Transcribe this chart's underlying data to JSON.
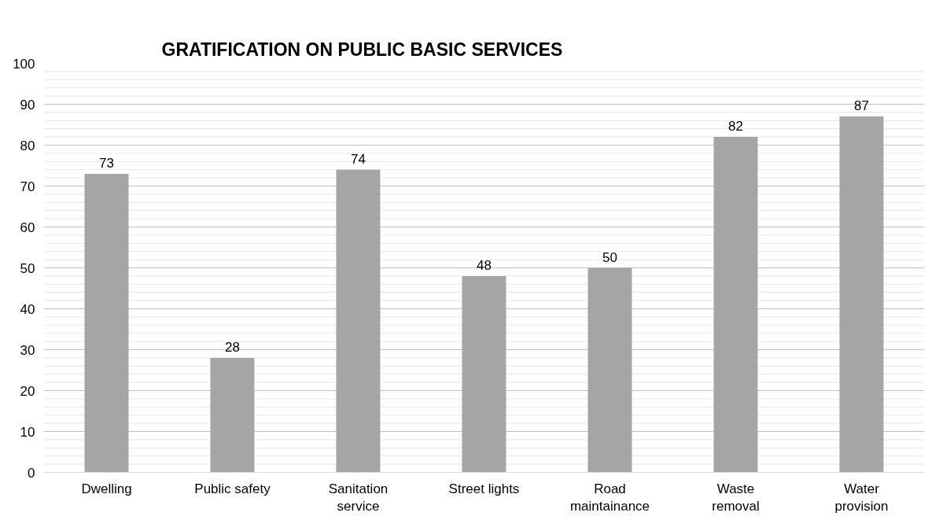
{
  "chart_data": {
    "type": "bar",
    "title": "GRATIFICATION ON PUBLIC BASIC SERVICES",
    "categories": [
      "Dwelling",
      "Public safety",
      "Sanitation\nservice",
      "Street lights",
      "Road\nmaintainance",
      "Waste\nremoval",
      "Water\nprovision"
    ],
    "values": [
      73,
      28,
      74,
      48,
      50,
      82,
      87
    ],
    "color": "#a5a5a5",
    "data_labels": true,
    "ylim": [
      0,
      100
    ],
    "yticks": [
      0,
      {
        "value": 2,
        "label": null
      },
      {
        "value": 4,
        "label": null
      },
      {
        "value": 6,
        "label": null
      },
      {
        "value": 8,
        "label": null
      },
      10,
      {
        "value": 12,
        "label": null
      },
      {
        "value": 14,
        "label": null
      },
      {
        "value": 16,
        "label": null
      },
      {
        "value": 18,
        "label": null
      },
      20,
      {
        "value": 22,
        "label": null
      },
      {
        "value": 24,
        "label": null
      },
      {
        "value": 26,
        "label": null
      },
      {
        "value": 28,
        "label": null
      },
      30,
      {
        "value": 32,
        "label": null
      },
      {
        "value": 34,
        "label": null
      },
      {
        "value": 36,
        "label": null
      },
      {
        "value": 38,
        "label": null
      },
      40,
      {
        "value": 42,
        "label": null
      },
      {
        "value": 44,
        "label": null
      },
      {
        "value": 46,
        "label": null
      },
      {
        "value": 48,
        "label": null
      },
      50,
      {
        "value": 52,
        "label": null
      },
      {
        "value": 54,
        "label": null
      },
      {
        "value": 56,
        "label": null
      },
      {
        "value": 58,
        "label": null
      },
      60,
      {
        "value": 62,
        "label": null
      },
      {
        "value": 64,
        "label": null
      },
      {
        "value": 66,
        "label": null
      },
      {
        "value": 68,
        "label": null
      },
      70,
      {
        "value": 72,
        "label": null
      },
      {
        "value": 74,
        "label": null
      },
      {
        "value": 76,
        "label": null
      },
      {
        "value": 78,
        "label": null
      },
      80,
      {
        "value": 82,
        "label": null
      },
      {
        "value": 84,
        "label": null
      },
      {
        "value": 86,
        "label": null
      },
      {
        "value": 88,
        "label": null
      },
      90,
      {
        "value": 92,
        "label": null
      },
      {
        "value": 94,
        "label": null
      },
      {
        "value": 96,
        "label": null
      },
      {
        "value": 98,
        "label": null
      },
      100
    ],
    "grid": "y"
  }
}
